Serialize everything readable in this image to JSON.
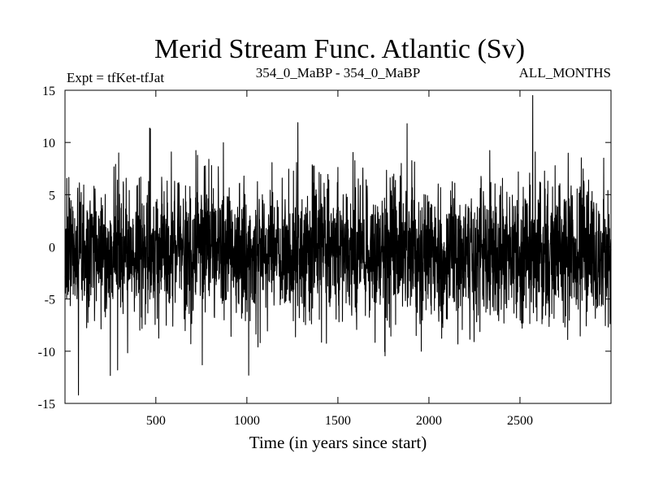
{
  "chart_data": {
    "type": "line",
    "title": "Merid Stream Func. Atlantic (Sv)",
    "subtitle_left": "Expt = tfKet-tfJat",
    "subtitle_center": "354_0_MaBP - 354_0_MaBP",
    "subtitle_right": "ALL_MONTHS",
    "xlabel": "Time (in years since start)",
    "ylabel": "",
    "xlim": [
      1,
      3000
    ],
    "ylim": [
      -15,
      15
    ],
    "xticks": [
      500,
      1000,
      1500,
      2000,
      2500
    ],
    "yticks": [
      15,
      10,
      5,
      0,
      -5,
      -10,
      -15
    ],
    "grid": false,
    "series": [
      {
        "name": "",
        "color": "#000000",
        "n_points": 3000,
        "mean": -0.6,
        "approx_std": 3.3,
        "approx_min": -14.5,
        "approx_max": 14.5,
        "sampled_values": [
          {
            "x": 75,
            "y": -14.2
          },
          {
            "x": 290,
            "y": -11.8
          },
          {
            "x": 470,
            "y": 11.3
          },
          {
            "x": 1010,
            "y": -12.3
          },
          {
            "x": 1280,
            "y": 11.9
          },
          {
            "x": 1880,
            "y": 11.8
          },
          {
            "x": 2570,
            "y": 14.5
          },
          {
            "x": 2960,
            "y": 8.5
          }
        ]
      }
    ]
  }
}
